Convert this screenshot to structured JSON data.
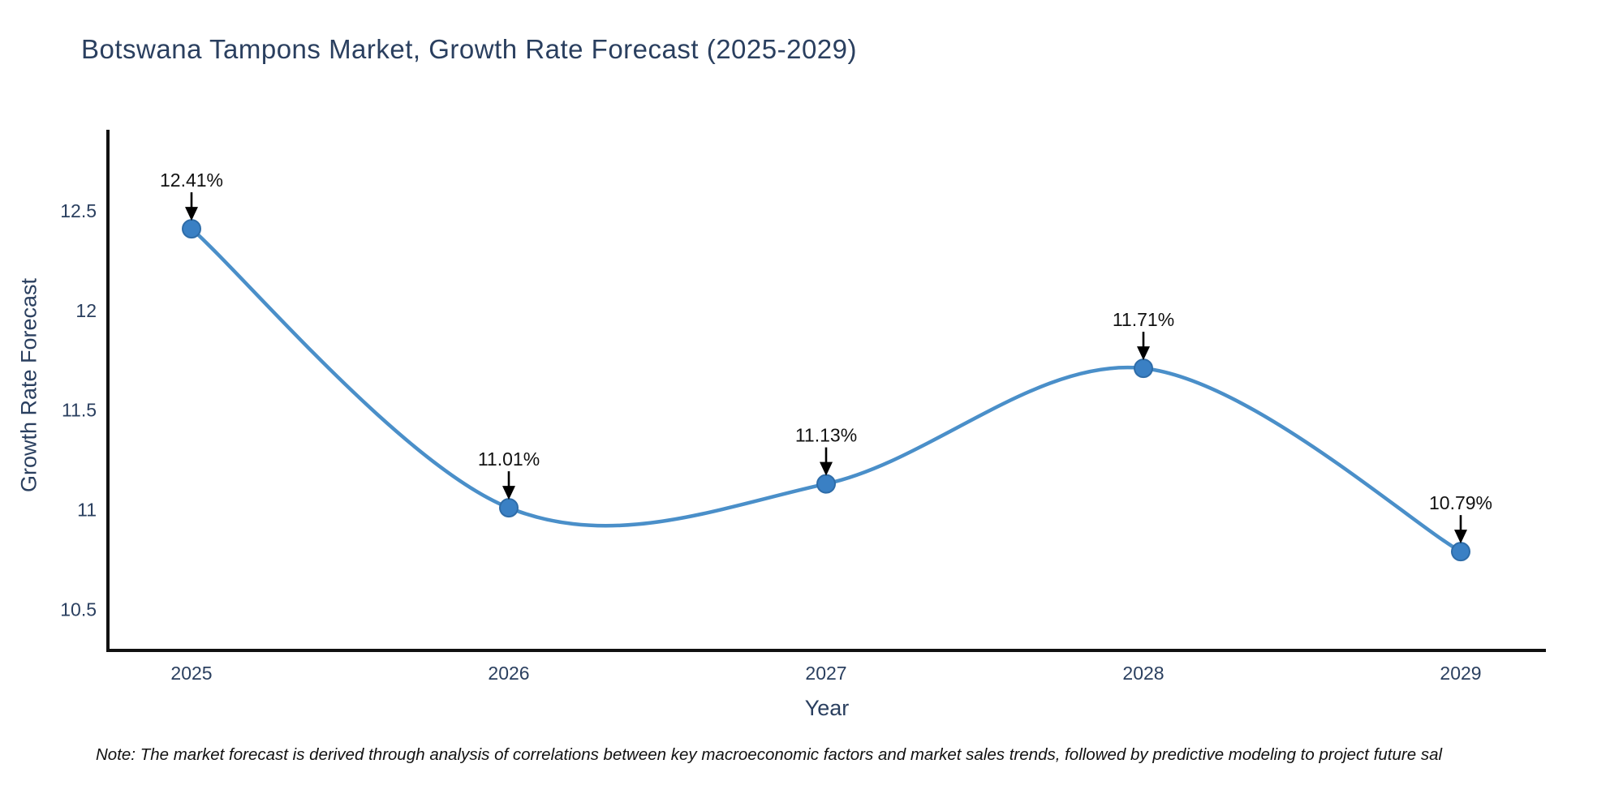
{
  "page": {
    "background_color": "#ffffff"
  },
  "title": {
    "text": "Botswana Tampons Market, Growth Rate Forecast (2025-2029)",
    "color": "#2a3f5f"
  },
  "note": {
    "text": "Note: The market forecast is derived through analysis of correlations between key macroeconomic factors and market sales trends, followed by predictive modeling to project future sal"
  },
  "chart_data": {
    "type": "line",
    "line_shape": "spline",
    "title": "Botswana Tampons Market, Growth Rate Forecast (2025-2029)",
    "x": [
      2025,
      2026,
      2027,
      2028,
      2029
    ],
    "values": [
      12.41,
      11.01,
      11.13,
      11.71,
      10.79
    ],
    "point_labels": [
      "12.41%",
      "11.01%",
      "11.13%",
      "11.71%",
      "10.79%"
    ],
    "xlabel": "Year",
    "ylabel": "Growth Rate Forecast",
    "x_tick_labels": [
      "2025",
      "2026",
      "2027",
      "2028",
      "2029"
    ],
    "y_ticks": [
      10.5,
      11,
      11.5,
      12,
      12.5
    ],
    "y_tick_labels": [
      "10.5",
      "11",
      "11.5",
      "12",
      "12.5"
    ],
    "ylim": [
      10.29,
      12.91
    ],
    "grid": false,
    "legend": "none",
    "markers": true,
    "annotations_with_arrows": true,
    "colors": {
      "line": "#4a8fc9",
      "marker_fill": "#3a80c4",
      "marker_edge": "#2e6ca8",
      "arrow": "#000000",
      "annotation_text": "#111111",
      "axis_line": "#111111",
      "tick_text": "#2a3f5f",
      "title_text": "#2a3f5f"
    }
  }
}
